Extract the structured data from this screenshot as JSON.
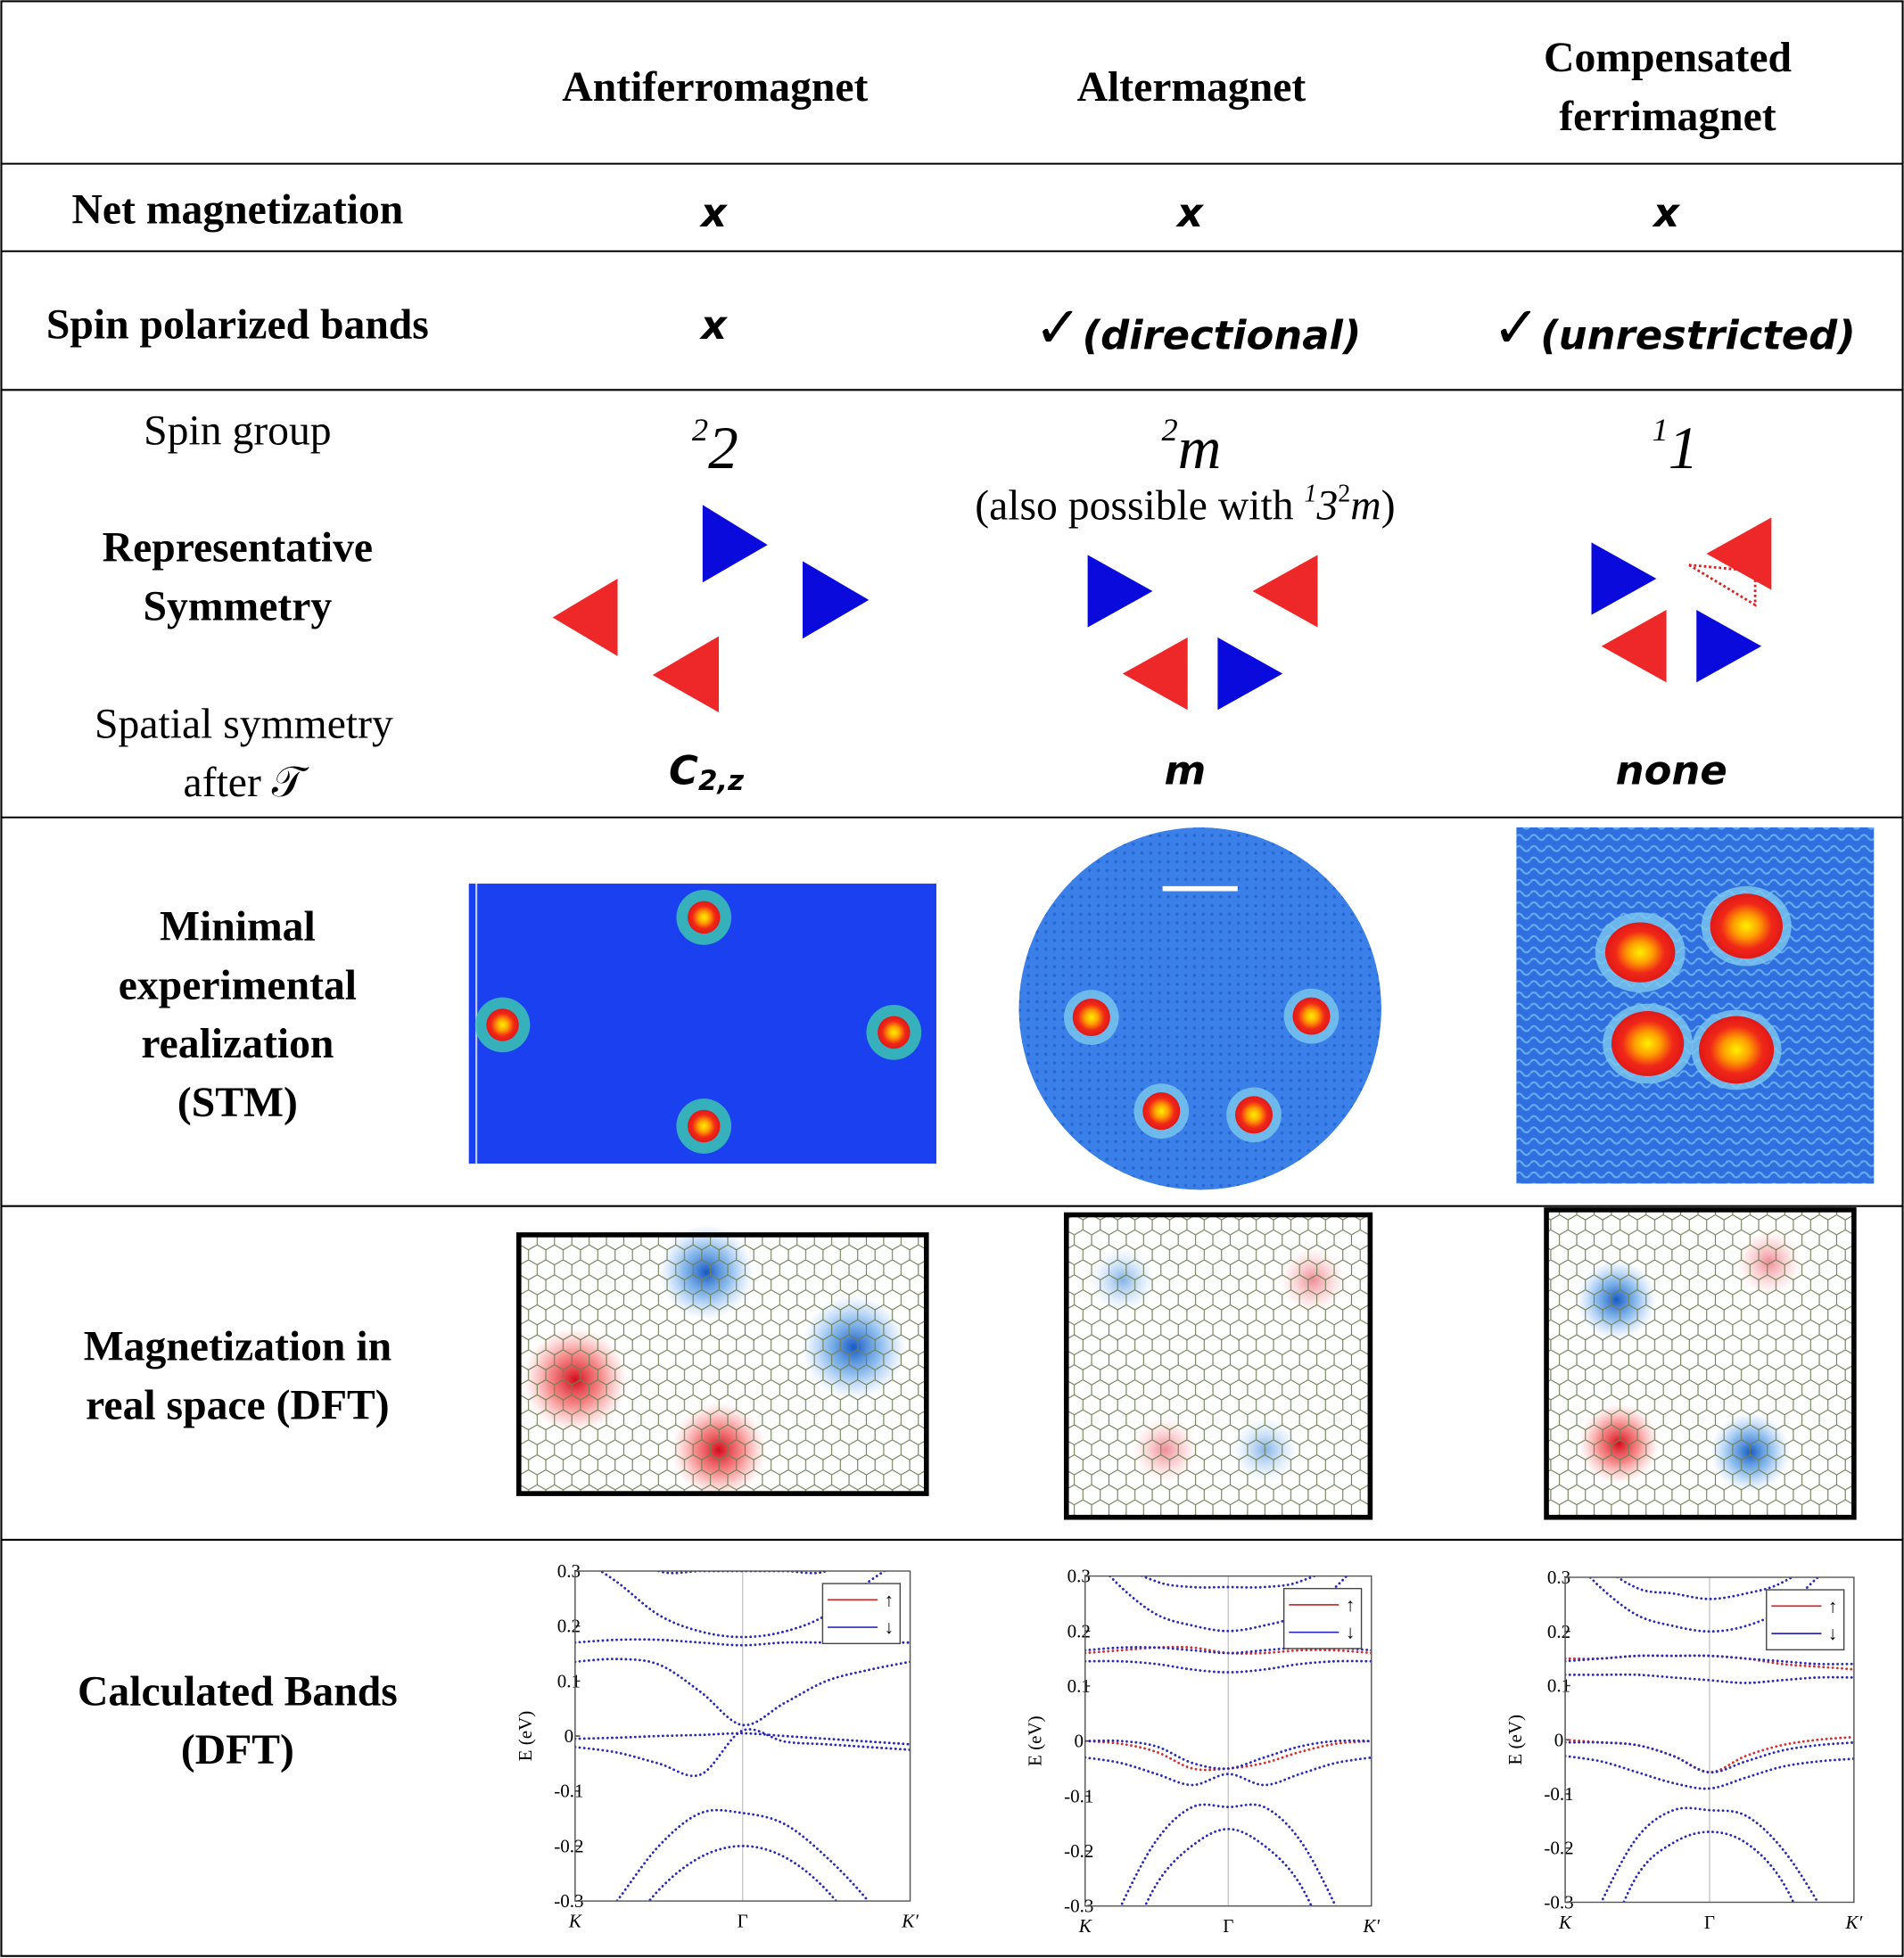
{
  "header": {
    "columns": [
      {
        "lines": [
          "Antiferromagnet"
        ]
      },
      {
        "lines": [
          "Altermagnet"
        ]
      },
      {
        "lines": [
          "Compensated",
          "ferrimagnet"
        ]
      }
    ]
  },
  "rows": [
    {
      "label": [
        "Net magnetization"
      ],
      "cells": [
        "x",
        "x",
        "x"
      ]
    },
    {
      "label": [
        "Spin polarized bands"
      ],
      "cells": [
        {
          "text": "x"
        },
        {
          "check": "✓",
          "note": "(directional)"
        },
        {
          "check": "✓",
          "note": "(unrestricted)"
        }
      ]
    },
    {
      "spin_group_label": [
        "Spin group"
      ],
      "representative_label": [
        "Representative",
        "Symmetry"
      ],
      "spatial_label": [
        "Spatial symmetry",
        "after 𝒯"
      ],
      "spin_groups": [
        {
          "sup": "2",
          "base": "2"
        },
        {
          "sup": "2",
          "base": "m",
          "note": {
            "prefix": "(also possible with ",
            "sup1": "1",
            "base1": "3",
            "sup2": "2",
            "base2": "m",
            "suffix": ")"
          }
        },
        {
          "sup": "1",
          "base": "1"
        }
      ],
      "spatial": [
        {
          "base": "C",
          "sub": "2,z"
        },
        {
          "base": "m"
        },
        {
          "base": "none"
        }
      ]
    },
    {
      "label": [
        "Minimal",
        "experimental",
        "realization",
        "(STM)"
      ]
    },
    {
      "label": [
        "Magnetization in",
        "real space (DFT)"
      ]
    },
    {
      "label": [
        "Calculated Bands",
        "(DFT)"
      ],
      "plots": [
        {
          "ylabel": "E (eV)",
          "ylim": [
            -0.3,
            0.3
          ],
          "yticks": [
            0.3,
            0.2,
            0.1,
            0,
            -0.1,
            -0.2,
            -0.3
          ],
          "xlim": [
            -1,
            1
          ],
          "xticks": [
            {
              "value": -1,
              "label": "K"
            },
            {
              "value": 0,
              "label": "Γ"
            },
            {
              "value": 1,
              "label": "K′"
            }
          ],
          "legend": [
            {
              "label": "↑",
              "color": "#d03030"
            },
            {
              "label": "↓",
              "color": "#2a2ab8"
            }
          ],
          "x": [
            -1,
            -0.75,
            -0.5,
            -0.25,
            0,
            0.25,
            0.5,
            0.75,
            1
          ],
          "bands": [
            {
              "color": "#2a2ab8",
              "values": [
                0.5,
                0.35,
                0.3,
                0.3,
                0.3,
                0.3,
                0.3,
                0.35,
                0.5
              ]
            },
            {
              "color": "#2a2ab8",
              "values": [
                0.33,
                0.28,
                0.22,
                0.19,
                0.18,
                0.19,
                0.22,
                0.28,
                0.33
              ]
            },
            {
              "color": "#2a2ab8",
              "values": [
                0.17,
                0.175,
                0.175,
                0.17,
                0.165,
                0.17,
                0.17,
                0.17,
                0.17
              ]
            },
            {
              "color": "#2a2ab8",
              "values": [
                0.135,
                0.14,
                0.13,
                0.08,
                0.02,
                0.06,
                0.1,
                0.12,
                0.135
              ]
            },
            {
              "color": "#2a2ab8",
              "values": [
                -0.005,
                -0.003,
                0,
                0.002,
                0.005,
                0,
                -0.005,
                -0.01,
                -0.015
              ]
            },
            {
              "color": "#2a2ab8",
              "values": [
                -0.02,
                -0.03,
                -0.05,
                -0.07,
                0.01,
                -0.01,
                -0.015,
                -0.02,
                -0.025
              ]
            },
            {
              "color": "#2a2ab8",
              "values": [
                -0.4,
                -0.3,
                -0.2,
                -0.14,
                -0.14,
                -0.16,
                -0.22,
                -0.3,
                -0.4
              ]
            },
            {
              "color": "#2a2ab8",
              "values": [
                -0.5,
                -0.38,
                -0.28,
                -0.22,
                -0.2,
                -0.22,
                -0.28,
                -0.38,
                -0.5
              ]
            }
          ]
        },
        {
          "ylabel": "E (eV)",
          "ylim": [
            -0.3,
            0.3
          ],
          "yticks": [
            0.3,
            0.2,
            0.1,
            0,
            -0.1,
            -0.2,
            -0.3
          ],
          "xlim": [
            -1,
            1
          ],
          "xticks": [
            {
              "value": -1,
              "label": "K"
            },
            {
              "value": 0,
              "label": "Γ"
            },
            {
              "value": 1,
              "label": "K′"
            }
          ],
          "legend": [
            {
              "label": "↑",
              "color": "#d03030"
            },
            {
              "label": "↓",
              "color": "#2a2ab8"
            }
          ],
          "x": [
            -1,
            -0.75,
            -0.5,
            -0.25,
            0,
            0.25,
            0.5,
            0.75,
            1
          ],
          "bands": [
            {
              "color": "#d03030",
              "values": [
                0.16,
                0.165,
                0.17,
                0.17,
                0.16,
                0.16,
                0.165,
                0.165,
                0.16
              ]
            },
            {
              "color": "#d03030",
              "values": [
                0,
                -0.005,
                -0.02,
                -0.05,
                -0.05,
                -0.04,
                -0.02,
                -0.005,
                0
              ]
            },
            {
              "color": "#2a2ab8",
              "values": [
                0.45,
                0.33,
                0.29,
                0.28,
                0.28,
                0.28,
                0.29,
                0.33,
                0.45
              ]
            },
            {
              "color": "#2a2ab8",
              "values": [
                0.35,
                0.28,
                0.23,
                0.21,
                0.2,
                0.21,
                0.23,
                0.28,
                0.35
              ]
            },
            {
              "color": "#2a2ab8",
              "values": [
                0.165,
                0.17,
                0.17,
                0.165,
                0.16,
                0.165,
                0.17,
                0.17,
                0.165
              ]
            },
            {
              "color": "#2a2ab8",
              "values": [
                0.145,
                0.145,
                0.14,
                0.13,
                0.125,
                0.13,
                0.14,
                0.145,
                0.145
              ]
            },
            {
              "color": "#2a2ab8",
              "values": [
                0,
                0,
                -0.01,
                -0.04,
                -0.05,
                -0.03,
                -0.01,
                0,
                0
              ]
            },
            {
              "color": "#2a2ab8",
              "values": [
                -0.03,
                -0.04,
                -0.06,
                -0.08,
                -0.06,
                -0.08,
                -0.06,
                -0.04,
                -0.03
              ]
            },
            {
              "color": "#2a2ab8",
              "values": [
                -0.45,
                -0.3,
                -0.18,
                -0.12,
                -0.12,
                -0.12,
                -0.18,
                -0.3,
                -0.45
              ]
            },
            {
              "color": "#2a2ab8",
              "values": [
                -0.55,
                -0.4,
                -0.26,
                -0.19,
                -0.16,
                -0.19,
                -0.26,
                -0.4,
                -0.55
              ]
            }
          ]
        },
        {
          "ylabel": "E (eV)",
          "ylim": [
            -0.3,
            0.3
          ],
          "yticks": [
            0.3,
            0.2,
            0.1,
            0,
            -0.1,
            -0.2,
            -0.3
          ],
          "xlim": [
            -1,
            1
          ],
          "xticks": [
            {
              "value": -1,
              "label": "K"
            },
            {
              "value": 0,
              "label": "Γ"
            },
            {
              "value": 1,
              "label": "K′"
            }
          ],
          "legend": [
            {
              "label": "↑",
              "color": "#d03030"
            },
            {
              "label": "↓",
              "color": "#2a2ab8"
            }
          ],
          "x": [
            -1,
            -0.75,
            -0.5,
            -0.25,
            0,
            0.25,
            0.5,
            0.75,
            1
          ],
          "bands": [
            {
              "color": "#d03030",
              "values": [
                0.15,
                0.15,
                0.155,
                0.155,
                0.155,
                0.15,
                0.14,
                0.135,
                0.13
              ]
            },
            {
              "color": "#d03030",
              "values": [
                0,
                -0.005,
                -0.01,
                -0.03,
                -0.06,
                -0.03,
                -0.01,
                0,
                0.005
              ]
            },
            {
              "color": "#2a2ab8",
              "values": [
                0.45,
                0.33,
                0.28,
                0.27,
                0.26,
                0.27,
                0.29,
                0.34,
                0.45
              ]
            },
            {
              "color": "#2a2ab8",
              "values": [
                0.35,
                0.28,
                0.23,
                0.21,
                0.2,
                0.21,
                0.24,
                0.3,
                0.36
              ]
            },
            {
              "color": "#2a2ab8",
              "values": [
                0.145,
                0.15,
                0.155,
                0.155,
                0.155,
                0.15,
                0.145,
                0.14,
                0.14
              ]
            },
            {
              "color": "#2a2ab8",
              "values": [
                0.12,
                0.12,
                0.12,
                0.115,
                0.11,
                0.105,
                0.11,
                0.115,
                0.115
              ]
            },
            {
              "color": "#2a2ab8",
              "values": [
                -0.005,
                -0.005,
                -0.01,
                -0.03,
                -0.06,
                -0.04,
                -0.02,
                -0.01,
                -0.005
              ]
            },
            {
              "color": "#2a2ab8",
              "values": [
                -0.03,
                -0.04,
                -0.06,
                -0.08,
                -0.09,
                -0.07,
                -0.05,
                -0.04,
                -0.035
              ]
            },
            {
              "color": "#2a2ab8",
              "values": [
                -0.45,
                -0.3,
                -0.18,
                -0.13,
                -0.13,
                -0.14,
                -0.2,
                -0.3,
                -0.42
              ]
            },
            {
              "color": "#2a2ab8",
              "values": [
                -0.55,
                -0.4,
                -0.25,
                -0.19,
                -0.17,
                -0.19,
                -0.26,
                -0.4,
                -0.55
              ]
            }
          ]
        }
      ]
    }
  ]
}
